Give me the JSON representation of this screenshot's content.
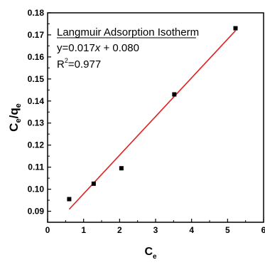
{
  "chart_data": {
    "type": "scatter",
    "x_axis": {
      "label_main": "C",
      "label_sub": "e",
      "range": [
        0,
        6
      ],
      "ticks": [
        0,
        1,
        2,
        3,
        4,
        5,
        6
      ],
      "tick_labels": [
        "0",
        "1",
        "2",
        "3",
        "4",
        "5",
        "6"
      ]
    },
    "y_axis": {
      "label_c": "C",
      "label_e": "e",
      "label_slash": "/q",
      "label_e2": "e",
      "range": [
        0.085,
        0.18
      ],
      "ticks": [
        0.09,
        0.1,
        0.11,
        0.12,
        0.13,
        0.14,
        0.15,
        0.16,
        0.17,
        0.18
      ],
      "tick_labels": [
        "0.09",
        "0.10",
        "0.11",
        "0.12",
        "0.13",
        "0.14",
        "0.15",
        "0.16",
        "0.17",
        "0.18"
      ]
    },
    "series": [
      {
        "marker": "square",
        "color": "#000000",
        "points": [
          {
            "x": 0.6,
            "y": 0.0955
          },
          {
            "x": 1.28,
            "y": 0.1025
          },
          {
            "x": 2.05,
            "y": 0.1095
          },
          {
            "x": 3.52,
            "y": 0.143
          },
          {
            "x": 5.22,
            "y": 0.173
          }
        ]
      }
    ],
    "fit_line": {
      "color": "#e02020",
      "x_start": 0.6,
      "y_start": 0.0909,
      "x_end": 5.22,
      "y_end": 0.1719
    },
    "annotations": {
      "title": "Langmuir Adsorption Isotherm",
      "equation": "y=0.017x + 0.080",
      "equation_pre": "y=0.017",
      "equation_x": "x",
      "equation_post": " + 0.080",
      "r2_r": "R",
      "r2_sup": "2",
      "r2_val": "=0.977"
    },
    "grid": false,
    "legend": "none"
  }
}
